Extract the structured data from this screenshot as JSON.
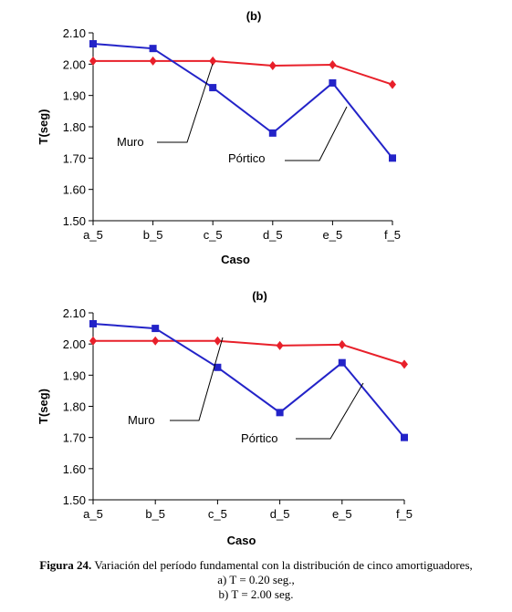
{
  "chart_data": [
    {
      "type": "line",
      "title": "(b)",
      "xlabel": "Caso",
      "ylabel": "T(seg)",
      "categories": [
        "a_5",
        "b_5",
        "c_5",
        "d_5",
        "e_5",
        "f_5"
      ],
      "y_ticks": [
        "1.50",
        "1.60",
        "1.70",
        "1.80",
        "1.90",
        "2.00",
        "2.10"
      ],
      "ylim": [
        1.5,
        2.1
      ],
      "grid": false,
      "series": [
        {
          "name": "Muro",
          "color": "#e8202a",
          "marker": "diamond",
          "values": [
            2.01,
            2.01,
            2.01,
            1.995,
            1.998,
            1.935
          ]
        },
        {
          "name": "Pórtico",
          "color": "#2323c8",
          "marker": "square",
          "values": [
            2.065,
            2.05,
            1.925,
            1.78,
            1.94,
            1.7
          ]
        }
      ]
    },
    {
      "type": "line",
      "title": "(b)",
      "xlabel": "Caso",
      "ylabel": "T(seg)",
      "categories": [
        "a_5",
        "b_5",
        "c_5",
        "d_5",
        "e_5",
        "f_5"
      ],
      "y_ticks": [
        "1.50",
        "1.60",
        "1.70",
        "1.80",
        "1.90",
        "2.00",
        "2.10"
      ],
      "ylim": [
        1.5,
        2.1
      ],
      "grid": false,
      "series": [
        {
          "name": "Muro",
          "color": "#e8202a",
          "marker": "diamond",
          "values": [
            2.01,
            2.01,
            2.01,
            1.995,
            1.998,
            1.935
          ]
        },
        {
          "name": "Pórtico",
          "color": "#2323c8",
          "marker": "square",
          "values": [
            2.065,
            2.05,
            1.925,
            1.78,
            1.94,
            1.7
          ]
        }
      ]
    }
  ],
  "caption": {
    "label": "Figura 24.",
    "text": " Variación del período fundamental con la distribución de cinco amortiguadores,",
    "line2": "a) T = 0.20 seg.,",
    "line3": "b) T = 2.00 seg."
  }
}
